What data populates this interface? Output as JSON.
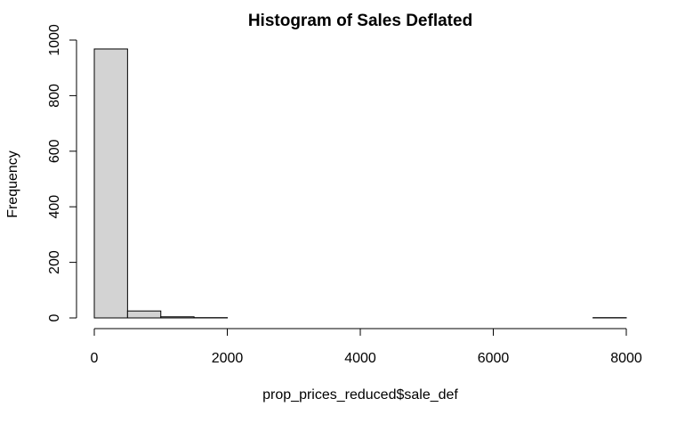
{
  "chart_data": {
    "type": "bar",
    "title": "Histogram of Sales Deflated",
    "xlabel": "prop_prices_reduced$sale_def",
    "ylabel": "Frequency",
    "xlim": [
      0,
      8000
    ],
    "ylim": [
      0,
      1000
    ],
    "x_ticks": [
      0,
      2000,
      4000,
      6000,
      8000
    ],
    "y_ticks": [
      0,
      200,
      400,
      600,
      800,
      1000
    ],
    "bin_width": 500,
    "bins": [
      {
        "start": 0,
        "end": 500,
        "count": 968
      },
      {
        "start": 500,
        "end": 1000,
        "count": 25
      },
      {
        "start": 1000,
        "end": 1500,
        "count": 4
      },
      {
        "start": 1500,
        "end": 2000,
        "count": 1
      },
      {
        "start": 2000,
        "end": 2500,
        "count": 0
      },
      {
        "start": 2500,
        "end": 3000,
        "count": 0
      },
      {
        "start": 3000,
        "end": 3500,
        "count": 0
      },
      {
        "start": 3500,
        "end": 4000,
        "count": 0
      },
      {
        "start": 4000,
        "end": 4500,
        "count": 0
      },
      {
        "start": 4500,
        "end": 5000,
        "count": 0
      },
      {
        "start": 5000,
        "end": 5500,
        "count": 0
      },
      {
        "start": 5500,
        "end": 6000,
        "count": 0
      },
      {
        "start": 6000,
        "end": 6500,
        "count": 0
      },
      {
        "start": 6500,
        "end": 7000,
        "count": 0
      },
      {
        "start": 7000,
        "end": 7500,
        "count": 0
      },
      {
        "start": 7500,
        "end": 8000,
        "count": 1
      }
    ],
    "bar_fill": "#d3d3d3",
    "grid": false,
    "legend": "none"
  }
}
